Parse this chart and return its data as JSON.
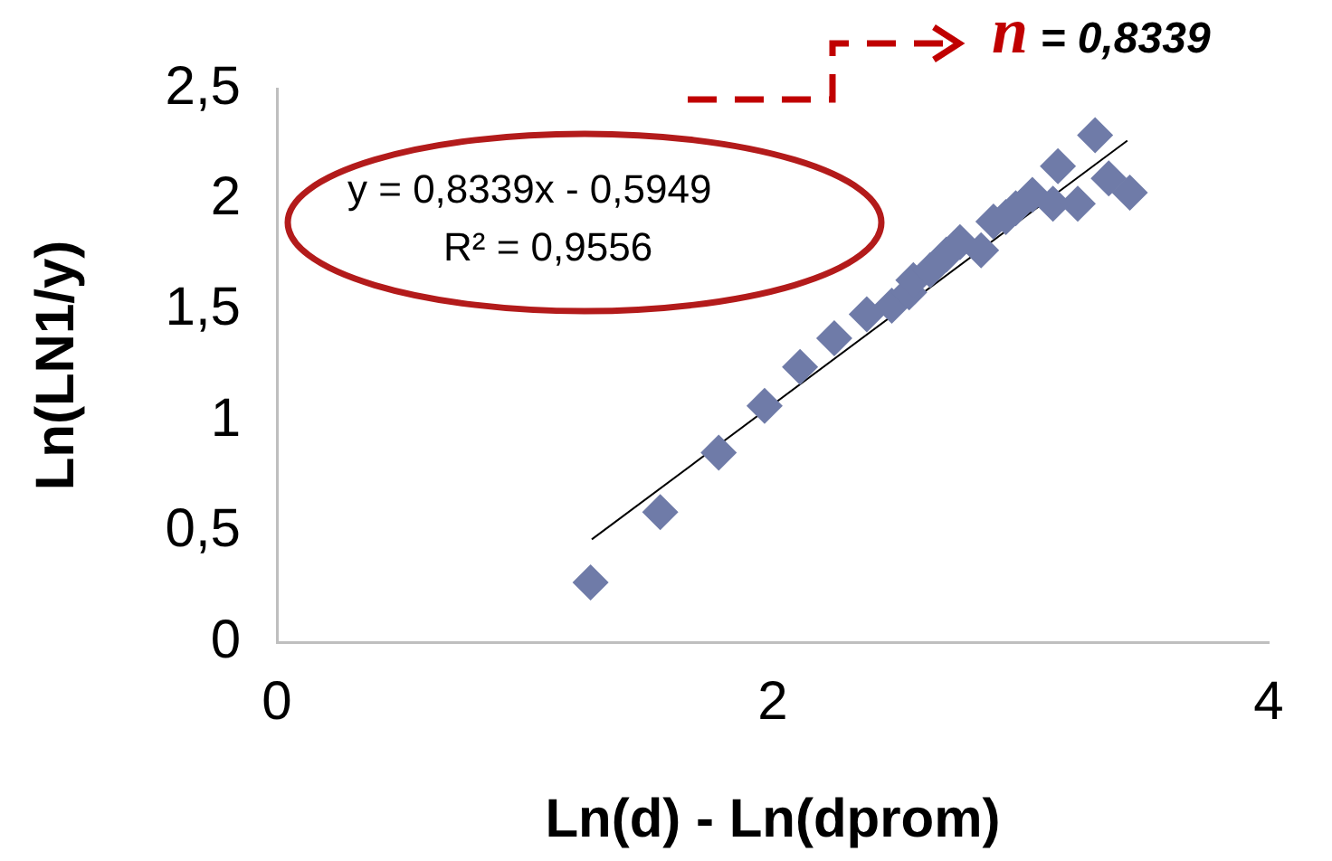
{
  "chart_data": {
    "type": "scatter",
    "xlabel": "Ln(d) - Ln(dprom)",
    "ylabel": "Ln(LN1/y)",
    "xlim": [
      0,
      4
    ],
    "xticks": [
      0,
      2,
      4
    ],
    "ylim": [
      0,
      2.5
    ],
    "yticks": [
      0,
      {
        "value": 0.5,
        "label": "0,5"
      },
      1,
      {
        "value": 1.5,
        "label": "1,5"
      },
      2,
      {
        "value": 2.5,
        "label": "2,5"
      }
    ],
    "grid": false,
    "legend": false,
    "marker": "diamond",
    "series": [
      {
        "color": "#6f7ba8",
        "x": [
          1.265,
          1.546,
          1.782,
          1.967,
          2.11,
          2.248,
          2.379,
          2.48,
          2.55,
          2.567,
          2.635,
          2.7,
          2.755,
          2.84,
          2.89,
          2.94,
          2.98,
          3.047,
          3.13,
          3.15,
          3.23,
          3.3,
          3.355,
          3.44
        ],
        "values": [
          0.27,
          0.587,
          0.856,
          1.067,
          1.243,
          1.373,
          1.481,
          1.52,
          1.58,
          1.635,
          1.68,
          1.75,
          1.807,
          1.77,
          1.9,
          1.92,
          1.96,
          2.02,
          1.98,
          2.15,
          1.98,
          2.29,
          2.095,
          2.03
        ]
      },
      {
        "type": "line",
        "color": "#000000",
        "marker": "none",
        "x": [
          1.27,
          3.43
        ],
        "values": [
          0.4642,
          2.2654
        ]
      }
    ],
    "annotations": [
      "y = 0,8339x - 0,5949",
      "R² = 0,9556",
      "n = 0,8339"
    ]
  }
}
